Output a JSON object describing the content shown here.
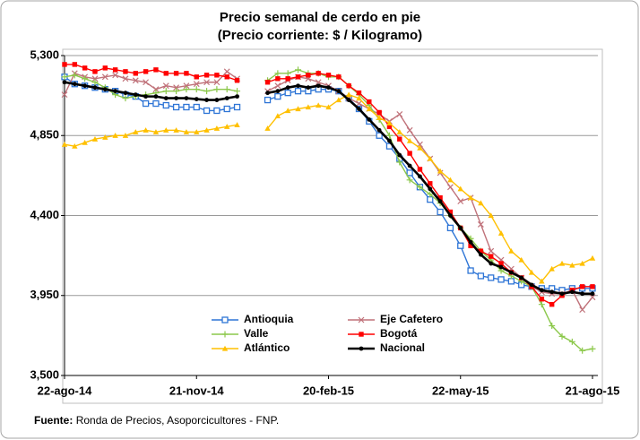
{
  "chart_data": {
    "type": "line",
    "title": "Precio semanal de cerdo en pie",
    "subtitle": "(Precio corriente: $ / Kilogramo)",
    "categories": [
      "22-ago-14",
      null,
      null,
      null,
      null,
      null,
      null,
      null,
      null,
      null,
      null,
      null,
      null,
      "21-nov-14",
      null,
      null,
      null,
      null,
      null,
      null,
      null,
      null,
      null,
      null,
      null,
      null,
      "20-feb-15",
      null,
      null,
      null,
      null,
      null,
      null,
      null,
      null,
      null,
      null,
      null,
      null,
      "22-may-15",
      null,
      null,
      null,
      null,
      null,
      null,
      null,
      null,
      null,
      null,
      null,
      null,
      "21-ago-15"
    ],
    "ylim": [
      3500,
      5300
    ],
    "yticks": [
      {
        "value": 3500,
        "label": "3,500"
      },
      {
        "value": 3950,
        "label": "3,950"
      },
      {
        "value": 4400,
        "label": "4,400"
      },
      {
        "value": 4850,
        "label": "4,850"
      },
      {
        "value": 5300,
        "label": "5,300"
      }
    ],
    "grid": true,
    "series": [
      {
        "name": "Antioquia",
        "color": "#2e75d6",
        "marker": "square-open",
        "values": [
          5180,
          5140,
          5130,
          5120,
          5110,
          5100,
          5080,
          5070,
          5030,
          5030,
          5020,
          5010,
          5010,
          5010,
          4990,
          4990,
          5000,
          5010,
          null,
          null,
          5050,
          5070,
          5090,
          5100,
          5100,
          5110,
          5110,
          5100,
          5060,
          5000,
          4930,
          4850,
          4790,
          4720,
          4640,
          4560,
          4490,
          4420,
          4330,
          4230,
          4090,
          4060,
          4050,
          4040,
          4030,
          4010,
          4000,
          3990,
          3990,
          3980,
          3990,
          3990,
          3990
        ]
      },
      {
        "name": "Eje Cafetero",
        "color": "#c0727a",
        "marker": "x",
        "values": [
          5080,
          5200,
          5180,
          5170,
          5180,
          5190,
          5170,
          5160,
          5150,
          5110,
          5130,
          5120,
          5130,
          5140,
          5150,
          5150,
          5210,
          5170,
          null,
          null,
          5100,
          5130,
          5160,
          5180,
          5170,
          5150,
          5130,
          5100,
          5060,
          5030,
          5000,
          4970,
          4930,
          4970,
          4880,
          4800,
          4720,
          4640,
          4560,
          4480,
          4500,
          4350,
          4200,
          4150,
          4100,
          4050,
          4000,
          3970,
          3960,
          3960,
          3980,
          3870,
          3940
        ]
      },
      {
        "name": "Valle",
        "color": "#8cc84b",
        "marker": "plus",
        "values": [
          5180,
          5190,
          5170,
          5150,
          5120,
          5080,
          5060,
          5070,
          5080,
          5090,
          5100,
          5100,
          5110,
          5110,
          5100,
          5110,
          5110,
          5100,
          null,
          null,
          5160,
          5200,
          5200,
          5220,
          5200,
          5200,
          5180,
          5180,
          5130,
          5080,
          5020,
          4940,
          4850,
          4700,
          4600,
          4560,
          4520,
          4470,
          4400,
          4330,
          4270,
          4200,
          4150,
          4090,
          4060,
          4030,
          4000,
          3900,
          3780,
          3720,
          3690,
          3640,
          3650
        ]
      },
      {
        "name": "Bogotá",
        "color": "#ff0000",
        "marker": "square",
        "values": [
          5250,
          5250,
          5230,
          5210,
          5230,
          5220,
          5210,
          5200,
          5210,
          5220,
          5200,
          5200,
          5200,
          5180,
          5190,
          5190,
          5180,
          5160,
          null,
          null,
          5150,
          5170,
          5170,
          5180,
          5190,
          5200,
          5190,
          5180,
          5130,
          5090,
          5040,
          4980,
          4900,
          4830,
          4750,
          4660,
          4580,
          4500,
          4420,
          4330,
          4230,
          4200,
          4170,
          4130,
          4080,
          4050,
          4000,
          3930,
          3900,
          3950,
          3980,
          4000,
          4000
        ]
      },
      {
        "name": "Atlántico",
        "color": "#ffc000",
        "marker": "triangle",
        "values": [
          4800,
          4790,
          4810,
          4830,
          4840,
          4850,
          4850,
          4870,
          4880,
          4870,
          4880,
          4880,
          4870,
          4870,
          4880,
          4890,
          4900,
          4910,
          null,
          null,
          4890,
          4960,
          4990,
          5000,
          5010,
          5020,
          5010,
          5050,
          5080,
          5060,
          5000,
          4950,
          4920,
          4870,
          4820,
          4780,
          4720,
          4650,
          4600,
          4550,
          4500,
          4470,
          4400,
          4300,
          4200,
          4150,
          4080,
          4030,
          4100,
          4130,
          4120,
          4130,
          4160
        ]
      },
      {
        "name": "Nacional",
        "color": "#000000",
        "marker": "dot",
        "values": [
          5150,
          5140,
          5130,
          5120,
          5110,
          5100,
          5090,
          5080,
          5070,
          5070,
          5060,
          5060,
          5060,
          5055,
          5050,
          5050,
          5060,
          5070,
          null,
          null,
          5090,
          5100,
          5120,
          5130,
          5120,
          5130,
          5120,
          5100,
          5050,
          5000,
          4940,
          4880,
          4820,
          4740,
          4680,
          4620,
          4550,
          4480,
          4400,
          4330,
          4250,
          4180,
          4130,
          4110,
          4080,
          4050,
          4010,
          3980,
          3970,
          3960,
          3970,
          3960,
          3960
        ]
      }
    ],
    "source": {
      "label": "Fuente:",
      "text": "Ronda de Precios, Asoporcicultores - FNP."
    }
  }
}
